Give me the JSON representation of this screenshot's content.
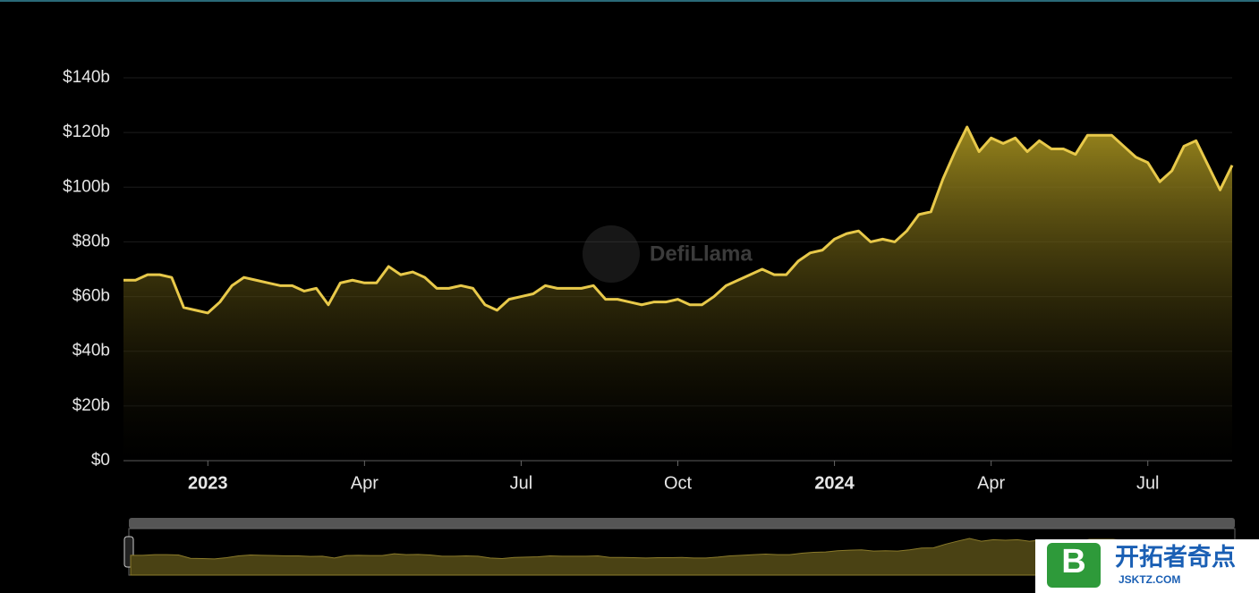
{
  "chart_data": {
    "type": "area",
    "categories": [
      null,
      null,
      null,
      null,
      null,
      null,
      null,
      "2023",
      null,
      null,
      null,
      null,
      null,
      null,
      null,
      null,
      null,
      null,
      null,
      null,
      "Apr",
      null,
      null,
      null,
      null,
      null,
      null,
      null,
      null,
      null,
      null,
      null,
      null,
      "Jul",
      null,
      null,
      null,
      null,
      null,
      null,
      null,
      null,
      null,
      null,
      null,
      null,
      "Oct",
      null,
      null,
      null,
      null,
      null,
      null,
      null,
      null,
      null,
      null,
      null,
      null,
      "2024",
      null,
      null,
      null,
      null,
      null,
      null,
      null,
      null,
      null,
      null,
      null,
      null,
      "Apr",
      null,
      null,
      null,
      null,
      null,
      null,
      null,
      null,
      null,
      null,
      null,
      null,
      "Jul",
      null,
      null,
      null,
      null,
      null,
      null,
      null
    ],
    "values": [
      66,
      66,
      68,
      68,
      67,
      56,
      55,
      54,
      58,
      64,
      67,
      66,
      65,
      64,
      64,
      62,
      63,
      57,
      65,
      66,
      65,
      65,
      71,
      68,
      69,
      67,
      63,
      63,
      64,
      63,
      57,
      55,
      59,
      60,
      61,
      64,
      63,
      63,
      63,
      64,
      59,
      59,
      58,
      57,
      58,
      58,
      59,
      57,
      57,
      60,
      64,
      66,
      68,
      70,
      68,
      68,
      73,
      76,
      77,
      81,
      83,
      84,
      80,
      81,
      80,
      84,
      90,
      91,
      103,
      113,
      122,
      113,
      118,
      116,
      118,
      113,
      117,
      114,
      114,
      112,
      119,
      119,
      119,
      115,
      111,
      109,
      102,
      106,
      115,
      117,
      108,
      99,
      108
    ],
    "color": "#e8c94a",
    "ylim": [
      0,
      140
    ],
    "yticks": [
      {
        "value": 0,
        "label": "$0"
      },
      {
        "value": 20,
        "label": "$20b"
      },
      {
        "value": 40,
        "label": "$40b"
      },
      {
        "value": 60,
        "label": "$60b"
      },
      {
        "value": 80,
        "label": "$80b"
      },
      {
        "value": 100,
        "label": "$100b"
      },
      {
        "value": 120,
        "label": "$120b"
      },
      {
        "value": 140,
        "label": "$140b"
      }
    ],
    "grid": true,
    "watermark": "DefiLlama"
  },
  "overlay": {
    "brand": "开拓者奇点",
    "url": "JSKTZ.COM",
    "logo": "B"
  }
}
